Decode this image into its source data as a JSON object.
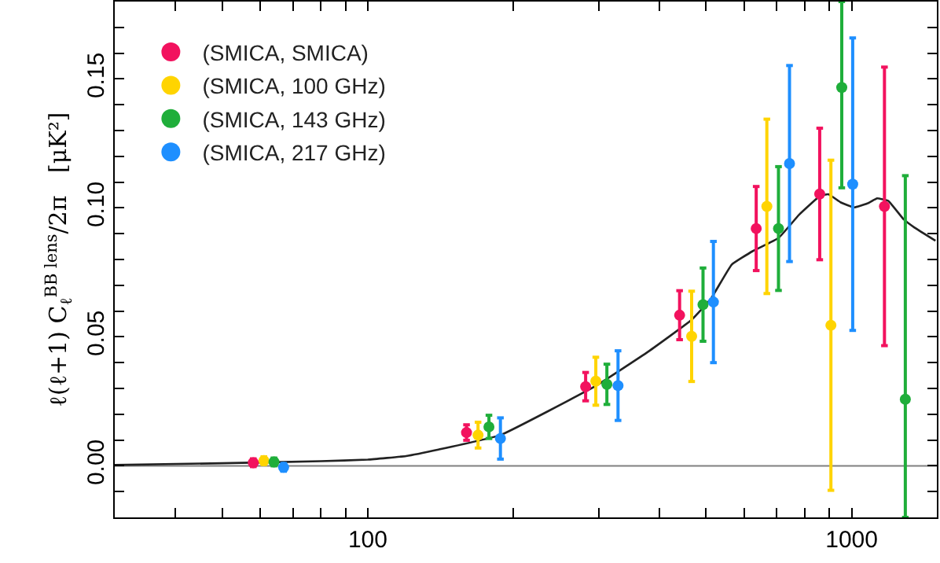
{
  "chart_data": {
    "type": "scatter",
    "ylabel": "ℓ(ℓ+1) C$_{ℓ}$$^{BB lens}$/2π   [μK²]",
    "log": "x",
    "xlim": [
      30,
      1500
    ],
    "ylim": [
      -0.02,
      0.18
    ],
    "xticks": [
      {
        "value": 40,
        "label": null
      },
      {
        "value": 50,
        "label": null
      },
      {
        "value": 60,
        "label": null
      },
      {
        "value": 70,
        "label": null
      },
      {
        "value": 80,
        "label": null
      },
      {
        "value": 90,
        "label": null
      },
      100,
      {
        "value": 200,
        "label": null
      },
      {
        "value": 300,
        "label": null
      },
      {
        "value": 400,
        "label": null
      },
      {
        "value": 500,
        "label": null
      },
      {
        "value": 600,
        "label": null
      },
      {
        "value": 700,
        "label": null
      },
      {
        "value": 800,
        "label": null
      },
      {
        "value": 900,
        "label": null
      },
      1000
    ],
    "yticks": [
      {
        "value": -0.01,
        "label": null
      },
      {
        "value": 0,
        "label": "0.00"
      },
      {
        "value": 0.01,
        "label": null
      },
      {
        "value": 0.02,
        "label": null
      },
      {
        "value": 0.03,
        "label": null
      },
      {
        "value": 0.04,
        "label": null
      },
      {
        "value": 0.05,
        "label": "0.05"
      },
      {
        "value": 0.06,
        "label": null
      },
      {
        "value": 0.07,
        "label": null
      },
      {
        "value": 0.08,
        "label": null
      },
      {
        "value": 0.09,
        "label": null
      },
      {
        "value": 0.1,
        "label": "0.10"
      },
      {
        "value": 0.11,
        "label": null
      },
      {
        "value": 0.12,
        "label": null
      },
      {
        "value": 0.13,
        "label": null
      },
      {
        "value": 0.14,
        "label": null
      },
      {
        "value": 0.15,
        "label": "0.15"
      },
      {
        "value": 0.16,
        "label": null
      },
      {
        "value": 0.17,
        "label": null
      }
    ],
    "grid": false,
    "legend": "top left",
    "marker": "circle",
    "ref_lines": [
      {
        "axis": "y",
        "value": 0,
        "color": "#808080"
      }
    ],
    "series": [
      {
        "type": "line",
        "color": "#222222",
        "marker": "none",
        "x": [
          30,
          50,
          80,
          100,
          120,
          140,
          188,
          296,
          380,
          467,
          512,
          565,
          624,
          706,
          780,
          861,
          895,
          950,
          1013,
          1077,
          1129,
          1191,
          1282,
          1348,
          1490
        ],
        "values": [
          0.0003,
          0.001,
          0.0018,
          0.0024,
          0.0038,
          0.0063,
          0.0119,
          0.031,
          0.0443,
          0.0566,
          0.0648,
          0.078,
          0.0832,
          0.0883,
          0.0975,
          0.1047,
          0.1053,
          0.1021,
          0.1002,
          0.1017,
          0.1037,
          0.1027,
          0.0955,
          0.0924,
          0.0873
        ]
      },
      {
        "name": "(SMICA, SMICA)",
        "color": "#f2125e",
        "x": [
          58,
          160,
          282,
          441,
          635,
          859,
          1169
        ],
        "values": [
          0.0012,
          0.0129,
          0.0307,
          0.0584,
          0.092,
          0.1054,
          0.1006
        ],
        "errors": [
          0.0015,
          0.003,
          0.0055,
          0.0095,
          0.0163,
          0.0255,
          0.054
        ]
      },
      {
        "name": "(SMICA, 100 GHz)",
        "color": "#ffd400",
        "x": [
          61,
          169,
          296,
          467,
          668,
          906
        ],
        "values": [
          0.002,
          0.0119,
          0.0328,
          0.0502,
          0.1006,
          0.0545
        ],
        "errors": [
          0.0015,
          0.005,
          0.0093,
          0.0175,
          0.0338,
          0.064
        ]
      },
      {
        "name": "(SMICA, 143 GHz)",
        "color": "#1fae3a",
        "x": [
          64,
          178,
          312,
          493,
          706,
          954,
          1291
        ],
        "values": [
          0.0015,
          0.0151,
          0.0316,
          0.0625,
          0.092,
          0.1467,
          0.0258
        ],
        "errors": [
          0.0015,
          0.0045,
          0.0078,
          0.0142,
          0.024,
          [
            0.1078,
            0.18
          ],
          [
            -0.02,
            0.1125
          ]
        ]
      },
      {
        "name": "(SMICA, 217 GHz)",
        "color": "#1e8fff",
        "x": [
          67,
          188,
          329,
          518,
          744,
          1005
        ],
        "values": [
          -0.0006,
          0.0106,
          0.0311,
          0.0635,
          0.1172,
          0.1092
        ],
        "errors": [
          0.0015,
          0.008,
          0.0135,
          0.0235,
          0.038,
          0.0567
        ]
      }
    ]
  }
}
